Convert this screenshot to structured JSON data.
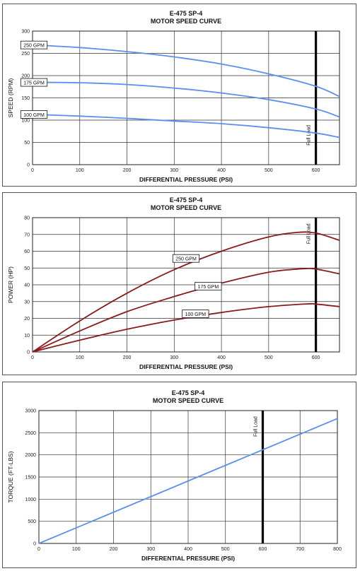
{
  "colors": {
    "blue": "#5b8ff0",
    "red": "#8b1a1a",
    "grid": "#333333",
    "fullload": "#000000"
  },
  "chart_data": [
    {
      "type": "line",
      "title": "E-475 SP-4",
      "subtitle": "MOTOR SPEED CURVE",
      "xlabel": "DIFFERENTIAL PRESSURE (PSI)",
      "ylabel": "SPEED (RPM)",
      "xlim": [
        0,
        650
      ],
      "ylim": [
        0,
        300
      ],
      "xticks": [
        "0",
        "100",
        "200",
        "300",
        "400",
        "500",
        "600"
      ],
      "yticks": [
        "0",
        "50",
        "100",
        "150",
        "200",
        "250",
        "300"
      ],
      "grid": true,
      "full_load": {
        "x": 600,
        "label": "Full Load"
      },
      "series": [
        {
          "name": "250 GPM",
          "color": "#5b8ff0",
          "x": [
            0,
            100,
            200,
            300,
            400,
            500,
            600,
            650
          ],
          "y": [
            269,
            263,
            254,
            242,
            226,
            204,
            176,
            153
          ]
        },
        {
          "name": "175 GPM",
          "color": "#5b8ff0",
          "x": [
            0,
            100,
            200,
            300,
            400,
            500,
            600,
            650
          ],
          "y": [
            185,
            184,
            180,
            172,
            161,
            146,
            125,
            107
          ]
        },
        {
          "name": "100 GPM",
          "color": "#5b8ff0",
          "x": [
            0,
            100,
            200,
            300,
            400,
            500,
            600,
            650
          ],
          "y": [
            113,
            109,
            104,
            98,
            92,
            83,
            71,
            61
          ]
        }
      ]
    },
    {
      "type": "line",
      "title": "E-475 SP-4",
      "subtitle": "MOTOR SPEED CURVE",
      "xlabel": "DIFFERENTIAL PRESSURE (PSI)",
      "ylabel": "POWER (HP)",
      "xlim": [
        0,
        650
      ],
      "ylim": [
        0,
        80
      ],
      "xticks": [
        "0",
        "100",
        "200",
        "300",
        "400",
        "500",
        "600"
      ],
      "yticks": [
        "0",
        "10",
        "20",
        "30",
        "40",
        "50",
        "60",
        "70",
        "80"
      ],
      "grid": true,
      "full_load": {
        "x": 600,
        "label": "Full Load"
      },
      "series": [
        {
          "name": "250 GPM",
          "color": "#8b1a1a",
          "x": [
            0,
            100,
            200,
            300,
            400,
            500,
            560,
            600,
            650
          ],
          "y": [
            0,
            18.5,
            35,
            49,
            60,
            68.5,
            71.2,
            70.8,
            66.5
          ]
        },
        {
          "name": "175 GPM",
          "color": "#8b1a1a",
          "x": [
            0,
            100,
            200,
            300,
            400,
            500,
            570,
            600,
            650
          ],
          "y": [
            0,
            12.5,
            24,
            33,
            41,
            47.5,
            49.5,
            49.4,
            46.5
          ]
        },
        {
          "name": "100 GPM",
          "color": "#8b1a1a",
          "x": [
            0,
            100,
            200,
            300,
            400,
            500,
            580,
            600,
            650
          ],
          "y": [
            0,
            7,
            13.5,
            19,
            23.5,
            27,
            28.6,
            28.5,
            27
          ]
        }
      ]
    },
    {
      "type": "line",
      "title": "E-475 SP-4",
      "subtitle": "MOTOR SPEED CURVE",
      "xlabel": "DIFFERENTIAL PRESSURE (PSI)",
      "ylabel": "TORQUE (FT-LBS)",
      "xlim": [
        0,
        800
      ],
      "ylim": [
        0,
        3000
      ],
      "xticks": [
        "0",
        "100",
        "200",
        "300",
        "400",
        "500",
        "600",
        "700",
        "800"
      ],
      "yticks": [
        "0",
        "500",
        "1000",
        "1500",
        "2000",
        "2500",
        "3000"
      ],
      "grid": true,
      "full_load": {
        "x": 600,
        "label": "Full Load"
      },
      "series": [
        {
          "name": "",
          "color": "#5b8ff0",
          "x": [
            0,
            800
          ],
          "y": [
            0,
            2820
          ]
        }
      ]
    }
  ]
}
